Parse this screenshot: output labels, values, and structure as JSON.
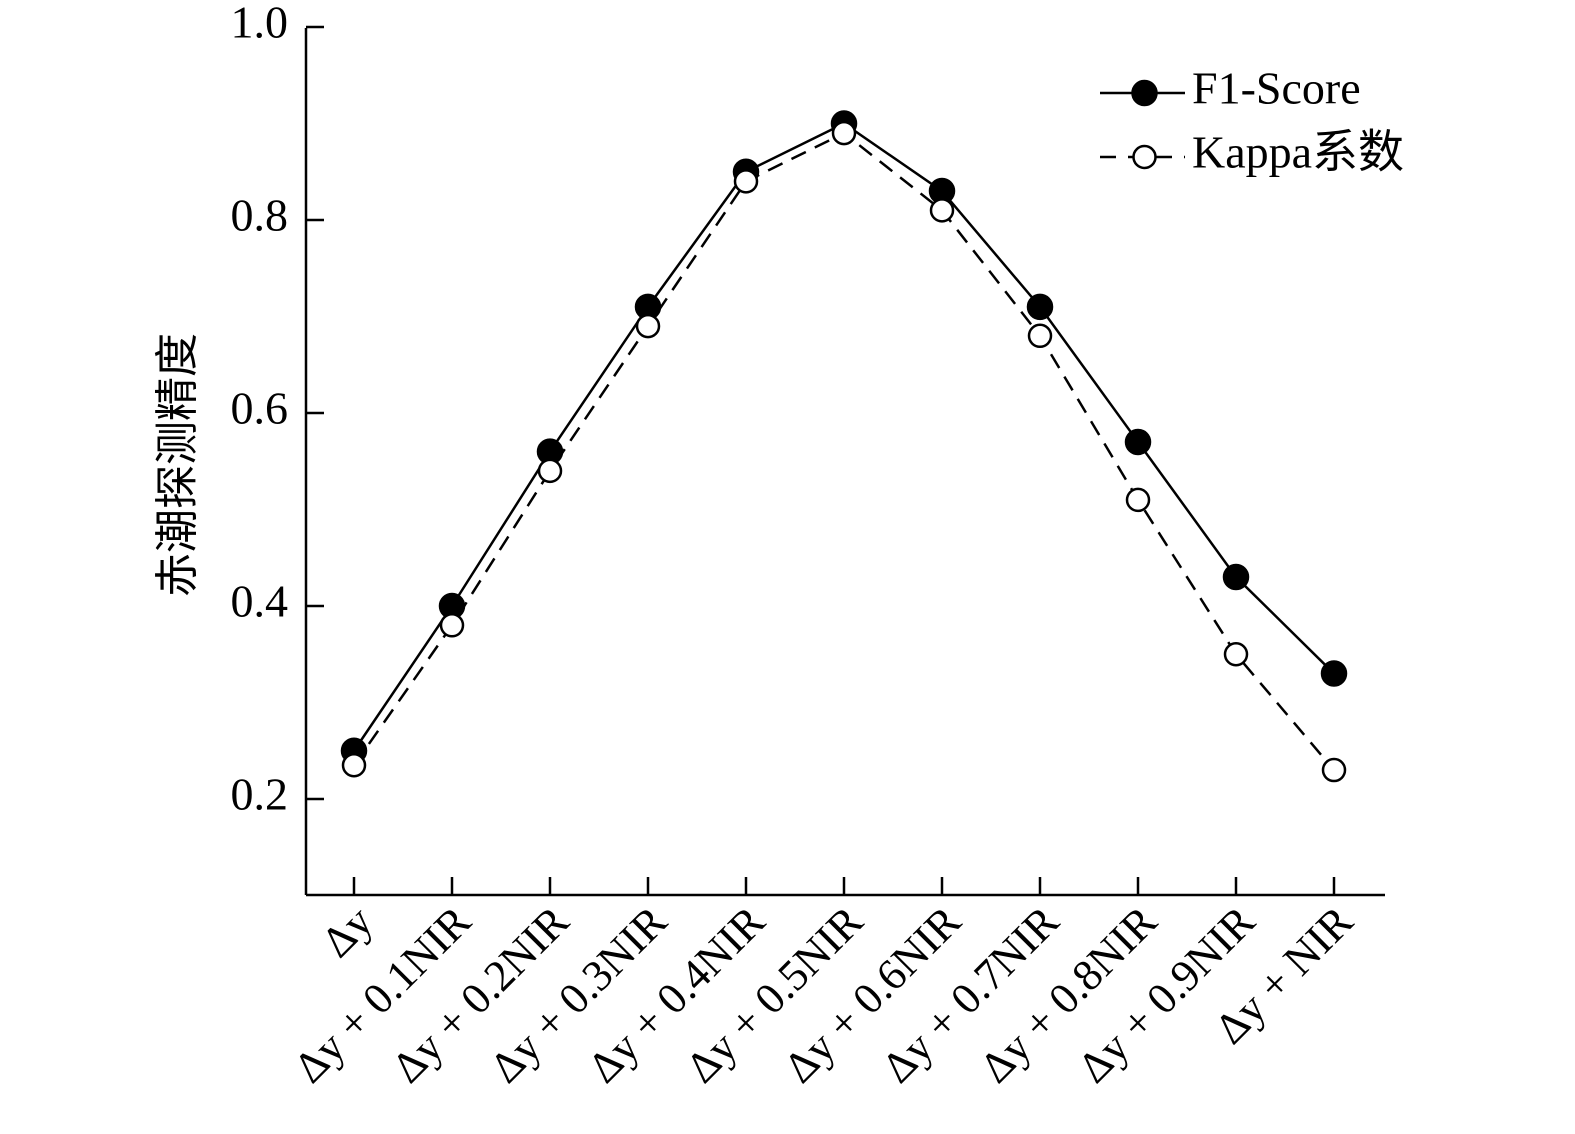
{
  "chart_data": {
    "type": "line",
    "title": "",
    "xlabel": "",
    "ylabel": "赤潮探测精度",
    "ylim": [
      0.1,
      1.0
    ],
    "yticks": [
      0.2,
      0.4,
      0.6,
      0.8,
      1.0
    ],
    "ytick_labels": [
      "0.2",
      "0.4",
      "0.6",
      "0.8",
      "1.0"
    ],
    "categories": [
      "Δy",
      "Δy + 0.1NIR",
      "Δy + 0.2NIR",
      "Δy + 0.3NIR",
      "Δy + 0.4NIR",
      "Δy + 0.5NIR",
      "Δy + 0.6NIR",
      "Δy + 0.7NIR",
      "Δy + 0.8NIR",
      "Δy + 0.9NIR",
      "Δy + NIR"
    ],
    "series": [
      {
        "name": "F1-Score",
        "marker": "filled-circle",
        "line": "solid",
        "values": [
          0.25,
          0.4,
          0.56,
          0.71,
          0.85,
          0.9,
          0.83,
          0.71,
          0.57,
          0.43,
          0.33
        ]
      },
      {
        "name": "Kappa系数",
        "marker": "open-circle",
        "line": "dashed",
        "values": [
          0.235,
          0.38,
          0.54,
          0.69,
          0.84,
          0.89,
          0.81,
          0.68,
          0.51,
          0.35,
          0.23
        ]
      }
    ],
    "legend_position": "top-right",
    "grid": false,
    "colors": {
      "line": "#000000",
      "background": "#ffffff"
    }
  }
}
